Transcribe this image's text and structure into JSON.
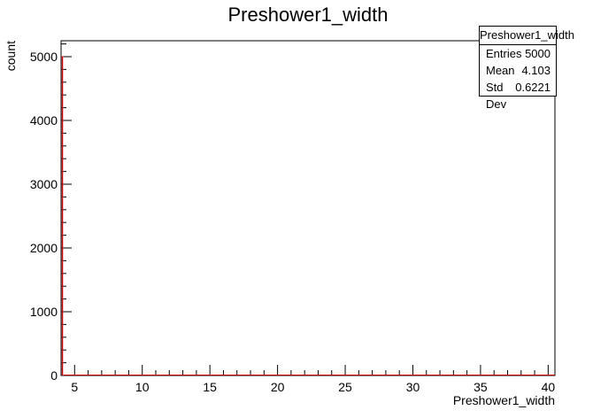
{
  "chart_data": {
    "type": "histogram",
    "title": "Preshower1_width",
    "xlabel": "Preshower1_width",
    "ylabel": "count",
    "xlim": [
      4,
      40.5
    ],
    "ylim": [
      0,
      5250
    ],
    "x_ticks": [
      5,
      10,
      15,
      20,
      25,
      30,
      35,
      40
    ],
    "y_ticks": [
      0,
      1000,
      2000,
      3000,
      4000,
      5000
    ],
    "series": [
      {
        "bins": [
          {
            "x": 4,
            "value": 5000
          }
        ],
        "color": "#cc0000"
      }
    ],
    "stats_box": {
      "title": "Preshower1_width",
      "rows": [
        {
          "label": "Entries",
          "value": "5000"
        },
        {
          "label": "Mean",
          "value": "4.103"
        },
        {
          "label": "Std Dev",
          "value": "0.6221"
        }
      ]
    }
  }
}
